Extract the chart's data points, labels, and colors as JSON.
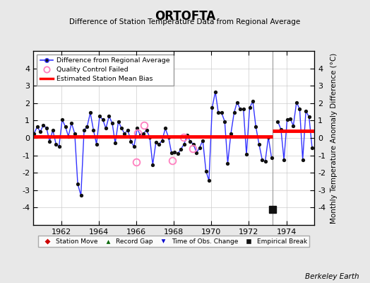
{
  "title": "ORTOFTA",
  "subtitle": "Difference of Station Temperature Data from Regional Average",
  "ylabel": "Monthly Temperature Anomaly Difference (°C)",
  "background_color": "#e8e8e8",
  "plot_bg_color": "#ffffff",
  "xlim": [
    1960.5,
    1975.5
  ],
  "ylim": [
    -5,
    5
  ],
  "yticks": [
    -4,
    -3,
    -2,
    -1,
    0,
    1,
    2,
    3,
    4
  ],
  "xticks": [
    1962,
    1964,
    1966,
    1968,
    1970,
    1972,
    1974
  ],
  "mean_bias_segment1": {
    "x": [
      1960.5,
      1973.25
    ],
    "y": [
      0.08,
      0.08
    ]
  },
  "mean_bias_segment2": {
    "x": [
      1973.25,
      1975.5
    ],
    "y": [
      0.42,
      0.42
    ]
  },
  "empirical_break_x": 1973.25,
  "vertical_line_x": 1973.25,
  "empirical_break_y": -4.1,
  "qc_failed_points": [
    [
      1966.42,
      0.72
    ],
    [
      1966.08,
      0.28
    ],
    [
      1966.0,
      -1.38
    ],
    [
      1967.92,
      -1.32
    ],
    [
      1968.5,
      0.05
    ],
    [
      1969.0,
      -0.6
    ]
  ],
  "data_x": [
    1960.54,
    1960.71,
    1960.87,
    1961.04,
    1961.21,
    1961.37,
    1961.54,
    1961.71,
    1961.87,
    1962.04,
    1962.21,
    1962.37,
    1962.54,
    1962.71,
    1962.87,
    1963.04,
    1963.21,
    1963.37,
    1963.54,
    1963.71,
    1963.87,
    1964.04,
    1964.21,
    1964.37,
    1964.54,
    1964.71,
    1964.87,
    1965.04,
    1965.21,
    1965.37,
    1965.54,
    1965.71,
    1965.87,
    1966.04,
    1966.21,
    1966.37,
    1966.54,
    1966.71,
    1966.87,
    1967.04,
    1967.21,
    1967.37,
    1967.54,
    1967.71,
    1967.87,
    1968.04,
    1968.21,
    1968.37,
    1968.54,
    1968.71,
    1968.87,
    1969.04,
    1969.21,
    1969.37,
    1969.54,
    1969.71,
    1969.87,
    1970.04,
    1970.21,
    1970.37,
    1970.54,
    1970.71,
    1970.87,
    1971.04,
    1971.21,
    1971.37,
    1971.54,
    1971.71,
    1971.87,
    1972.04,
    1972.21,
    1972.37,
    1972.54,
    1972.71,
    1972.87,
    1973.04,
    1973.21,
    1973.54,
    1973.71,
    1973.87,
    1974.04,
    1974.21,
    1974.37,
    1974.54,
    1974.71,
    1974.87,
    1975.04,
    1975.21,
    1975.37
  ],
  "data_y": [
    0.25,
    0.65,
    0.35,
    0.75,
    0.55,
    -0.2,
    0.45,
    -0.35,
    -0.5,
    1.05,
    0.65,
    0.1,
    0.85,
    0.25,
    -2.65,
    -3.3,
    0.45,
    0.65,
    1.45,
    0.45,
    -0.35,
    1.25,
    1.05,
    0.55,
    1.25,
    0.85,
    -0.3,
    0.95,
    0.55,
    0.25,
    0.45,
    -0.2,
    -0.5,
    0.55,
    0.15,
    0.25,
    0.45,
    0.05,
    -1.55,
    -0.25,
    -0.35,
    -0.15,
    0.55,
    0.05,
    -0.85,
    -0.8,
    -0.9,
    -0.65,
    -0.35,
    0.15,
    -0.2,
    -0.35,
    -0.85,
    -0.55,
    -0.15,
    -1.9,
    -2.45,
    1.75,
    2.65,
    1.45,
    1.45,
    0.95,
    -1.45,
    0.25,
    1.45,
    2.05,
    1.65,
    1.65,
    -0.95,
    1.75,
    2.1,
    0.65,
    -0.35,
    -1.25,
    -1.35,
    0.05,
    -1.15,
    0.95,
    0.5,
    -1.25,
    1.05,
    1.1,
    0.7,
    2.05,
    1.65,
    -1.25,
    1.55,
    1.2,
    -0.55
  ],
  "line_color": "#3333ff",
  "dot_color": "#111111",
  "qc_color": "#ff80c0",
  "bias_color": "#ff0000",
  "station_move_color": "#cc0000",
  "record_gap_color": "#006400",
  "obs_change_color": "#0000cc",
  "empirical_break_color": "#111111",
  "berkeley_earth_text": "Berkeley Earth"
}
